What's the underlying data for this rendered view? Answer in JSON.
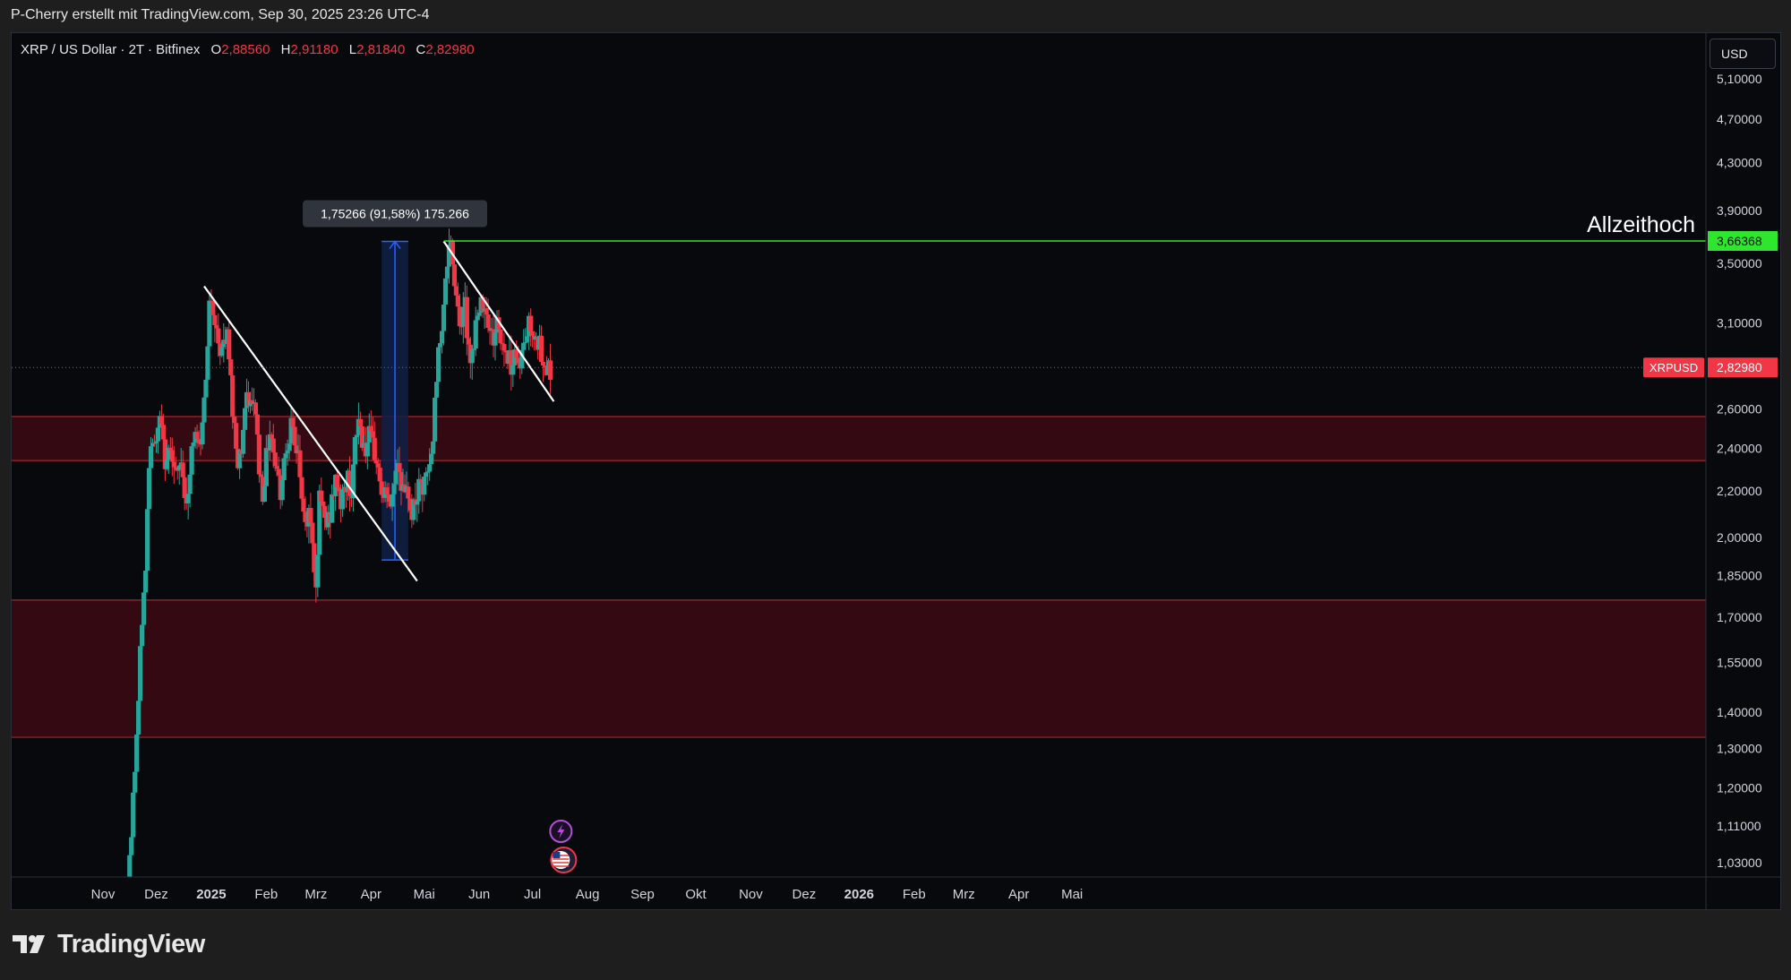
{
  "header": {
    "caption": "P-Cherry erstellt mit TradingView.com, Sep 30, 2025 23:26 UTC-4"
  },
  "legend": {
    "symbol": "XRP / US Dollar · 2T · Bitfinex",
    "open_label": "O",
    "open": "2,88560",
    "high_label": "H",
    "high": "2,91180",
    "low_label": "L",
    "low": "2,81840",
    "close_label": "C",
    "close": "2,82980"
  },
  "currency_button": "USD",
  "brand": {
    "name": "TradingView",
    "icon": "tradingview-logo-icon"
  },
  "colors": {
    "up": "#26a69a",
    "down": "#f23645",
    "zone_fill": "#3a0a12",
    "zone_line": "#a8242f",
    "ath_line": "#2ee62e",
    "measure_fill": "#0f2048",
    "measure_line": "#2962ff",
    "trend": "#ffffff"
  },
  "chart_data": {
    "type": "candlestick",
    "title": "XRP / US Dollar · 2T · Bitfinex",
    "y_scale": "log",
    "ylim": [
      1.0,
      5.6
    ],
    "y_ticks": [
      "5,10000",
      "4,70000",
      "4,30000",
      "3,90000",
      "3,50000",
      "3,10000",
      "2,60000",
      "2,40000",
      "2,20000",
      "2,00000",
      "1,85000",
      "1,70000",
      "1,55000",
      "1,40000",
      "1,30000",
      "1,20000",
      "1,11000",
      "1,03000"
    ],
    "y_tick_values": [
      5.1,
      4.7,
      4.3,
      3.9,
      3.5,
      3.1,
      2.6,
      2.4,
      2.2,
      2.0,
      1.85,
      1.7,
      1.55,
      1.4,
      1.3,
      1.2,
      1.11,
      1.03
    ],
    "x_ticks": [
      {
        "label": "Nov",
        "day": 0
      },
      {
        "label": "Dez",
        "day": 30
      },
      {
        "label": "2025",
        "day": 61,
        "bold": true
      },
      {
        "label": "Feb",
        "day": 92
      },
      {
        "label": "Mrz",
        "day": 120
      },
      {
        "label": "Apr",
        "day": 151
      },
      {
        "label": "Mai",
        "day": 181
      },
      {
        "label": "Jun",
        "day": 212
      },
      {
        "label": "Jul",
        "day": 242
      },
      {
        "label": "Aug",
        "day": 273
      },
      {
        "label": "Sep",
        "day": 304
      },
      {
        "label": "Okt",
        "day": 334
      },
      {
        "label": "Nov",
        "day": 365
      },
      {
        "label": "Dez",
        "day": 395
      },
      {
        "label": "2026",
        "day": 426,
        "bold": true
      },
      {
        "label": "Feb",
        "day": 457
      },
      {
        "label": "Mrz",
        "day": 485
      },
      {
        "label": "Apr",
        "day": 516
      },
      {
        "label": "Mai",
        "day": 546
      }
    ],
    "candles_close_path": [
      [
        14,
        1.0
      ],
      [
        16,
        1.1
      ],
      [
        18,
        1.25
      ],
      [
        20,
        1.43
      ],
      [
        22,
        1.7
      ],
      [
        24,
        1.86
      ],
      [
        26,
        2.35
      ],
      [
        28,
        2.48
      ],
      [
        30,
        2.4
      ],
      [
        32,
        2.55
      ],
      [
        34,
        2.4
      ],
      [
        36,
        2.3
      ],
      [
        38,
        2.45
      ],
      [
        40,
        2.3
      ],
      [
        42,
        2.25
      ],
      [
        44,
        2.35
      ],
      [
        46,
        2.2
      ],
      [
        48,
        2.15
      ],
      [
        50,
        2.4
      ],
      [
        52,
        2.45
      ],
      [
        54,
        2.4
      ],
      [
        56,
        2.5
      ],
      [
        58,
        2.8
      ],
      [
        60,
        3.25
      ],
      [
        62,
        3.1
      ],
      [
        64,
        3.05
      ],
      [
        66,
        2.95
      ],
      [
        68,
        2.95
      ],
      [
        70,
        3.0
      ],
      [
        72,
        2.75
      ],
      [
        74,
        2.5
      ],
      [
        76,
        2.35
      ],
      [
        78,
        2.4
      ],
      [
        80,
        2.6
      ],
      [
        82,
        2.65
      ],
      [
        84,
        2.6
      ],
      [
        86,
        2.6
      ],
      [
        88,
        2.3
      ],
      [
        90,
        2.2
      ],
      [
        92,
        2.35
      ],
      [
        94,
        2.5
      ],
      [
        96,
        2.4
      ],
      [
        98,
        2.3
      ],
      [
        100,
        2.2
      ],
      [
        102,
        2.35
      ],
      [
        104,
        2.45
      ],
      [
        106,
        2.5
      ],
      [
        108,
        2.4
      ],
      [
        110,
        2.4
      ],
      [
        112,
        2.15
      ],
      [
        114,
        2.05
      ],
      [
        116,
        2.1
      ],
      [
        118,
        2.0
      ],
      [
        120,
        1.8
      ],
      [
        122,
        2.15
      ],
      [
        124,
        2.1
      ],
      [
        126,
        2.05
      ],
      [
        128,
        2.1
      ],
      [
        130,
        2.2
      ],
      [
        132,
        2.25
      ],
      [
        134,
        2.15
      ],
      [
        136,
        2.2
      ],
      [
        138,
        2.25
      ],
      [
        140,
        2.2
      ],
      [
        142,
        2.4
      ],
      [
        144,
        2.55
      ],
      [
        146,
        2.45
      ],
      [
        148,
        2.4
      ],
      [
        150,
        2.45
      ],
      [
        152,
        2.4
      ],
      [
        154,
        2.35
      ],
      [
        156,
        2.25
      ],
      [
        158,
        2.15
      ],
      [
        160,
        2.2
      ],
      [
        162,
        2.1
      ],
      [
        164,
        2.25
      ],
      [
        166,
        2.35
      ],
      [
        168,
        2.25
      ],
      [
        170,
        2.15
      ],
      [
        172,
        2.2
      ],
      [
        174,
        2.1
      ],
      [
        176,
        2.15
      ],
      [
        178,
        2.2
      ],
      [
        180,
        2.2
      ],
      [
        182,
        2.25
      ],
      [
        184,
        2.3
      ],
      [
        186,
        2.45
      ],
      [
        188,
        2.8
      ],
      [
        190,
        3.0
      ],
      [
        192,
        3.25
      ],
      [
        194,
        3.5
      ],
      [
        196,
        3.6
      ],
      [
        198,
        3.4
      ],
      [
        200,
        3.2
      ],
      [
        202,
        3.1
      ],
      [
        204,
        3.2
      ],
      [
        206,
        2.95
      ],
      [
        208,
        2.9
      ],
      [
        210,
        3.1
      ],
      [
        212,
        3.15
      ],
      [
        214,
        3.25
      ],
      [
        216,
        3.2
      ],
      [
        218,
        3.05
      ],
      [
        220,
        3.0
      ],
      [
        222,
        3.1
      ],
      [
        224,
        3.0
      ],
      [
        226,
        2.95
      ],
      [
        228,
        2.9
      ],
      [
        230,
        2.85
      ],
      [
        232,
        2.95
      ],
      [
        234,
        2.85
      ],
      [
        236,
        2.9
      ],
      [
        238,
        3.0
      ],
      [
        240,
        3.1
      ],
      [
        242,
        3.05
      ],
      [
        244,
        3.05
      ],
      [
        246,
        2.95
      ],
      [
        248,
        2.8
      ],
      [
        250,
        2.85
      ],
      [
        252,
        2.82
      ]
    ],
    "zones": [
      {
        "name": "upper-demand-zone",
        "top": 2.56,
        "bottom": 2.34
      },
      {
        "name": "lower-demand-zone",
        "top": 1.76,
        "bottom": 1.33
      }
    ],
    "horizontal_lines": [
      {
        "name": "ath-line",
        "value": 3.66368,
        "label": "Allzeithoch",
        "price_label": "3,66368",
        "start_day": 192
      },
      {
        "name": "last-price-line",
        "value": 2.8298,
        "price_label": "2,82980",
        "symbol_label": "XRPUSD"
      }
    ],
    "trendlines": [
      {
        "name": "trendline-1",
        "from": {
          "day": 57,
          "price": 3.34
        },
        "to": {
          "day": 177,
          "price": 1.83
        }
      },
      {
        "name": "trendline-2",
        "from": {
          "day": 192,
          "price": 3.66
        },
        "to": {
          "day": 254,
          "price": 2.64
        }
      }
    ],
    "measurement": {
      "label": "1,75266 (91,58%) 175.266",
      "start_day": 157,
      "end_day": 172,
      "low": 1.91,
      "high": 3.66
    },
    "event_icons": [
      "lightning-event-icon",
      "us-flag-event-icon"
    ]
  }
}
